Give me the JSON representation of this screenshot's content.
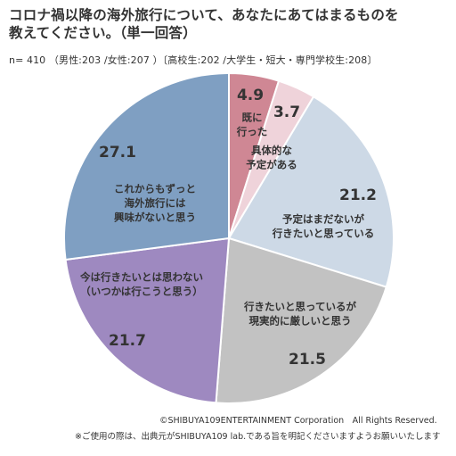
{
  "header": {
    "title_line1": "コロナ禍以降の海外旅行について、あなたにあてはまるものを",
    "title_line2": "教えてください。（単一回答）",
    "subtitle": "n= 410 （男性:203 /女性:207 ）〔高校生:202 /大学生・短大・専門学校生:208〕"
  },
  "chart_data": {
    "type": "pie",
    "title": "コロナ禍以降の海外旅行について、あなたにあてはまるものを教えてください。（単一回答）",
    "start_angle_deg": 0,
    "direction": "clockwise",
    "slices": [
      {
        "label_lines": [
          "既に",
          "行った"
        ],
        "value": 4.9,
        "value_text": "4.9",
        "color": "#cf8794"
      },
      {
        "label_lines": [
          "具体的な",
          "予定がある"
        ],
        "value": 3.7,
        "value_text": "3.7",
        "color": "#efd3da"
      },
      {
        "label_lines": [
          "予定はまだないが",
          "行きたいと思っている"
        ],
        "value": 21.2,
        "value_text": "21.2",
        "color": "#cdd9e6"
      },
      {
        "label_lines": [
          "行きたいと思っているが",
          "現実的に厳しいと思う"
        ],
        "value": 21.5,
        "value_text": "21.5",
        "color": "#c2c2c2"
      },
      {
        "label_lines": [
          "今は行きたいとは思わない",
          "（いつかは行こうと思う）"
        ],
        "value": 21.7,
        "value_text": "21.7",
        "color": "#9e89c0"
      },
      {
        "label_lines": [
          "これからもずっと",
          "海外旅行には",
          "興味がないと思う"
        ],
        "value": 27.1,
        "value_text": "27.1",
        "color": "#7f9fc2"
      }
    ]
  },
  "footer": {
    "copyright": "©SHIBUYA109ENTERTAINMENT Corporation　All Rights Reserved.",
    "note": "※ご使用の際は、出典元がSHIBUYA109 lab.である旨を明記くださいますようお願いいたします"
  }
}
